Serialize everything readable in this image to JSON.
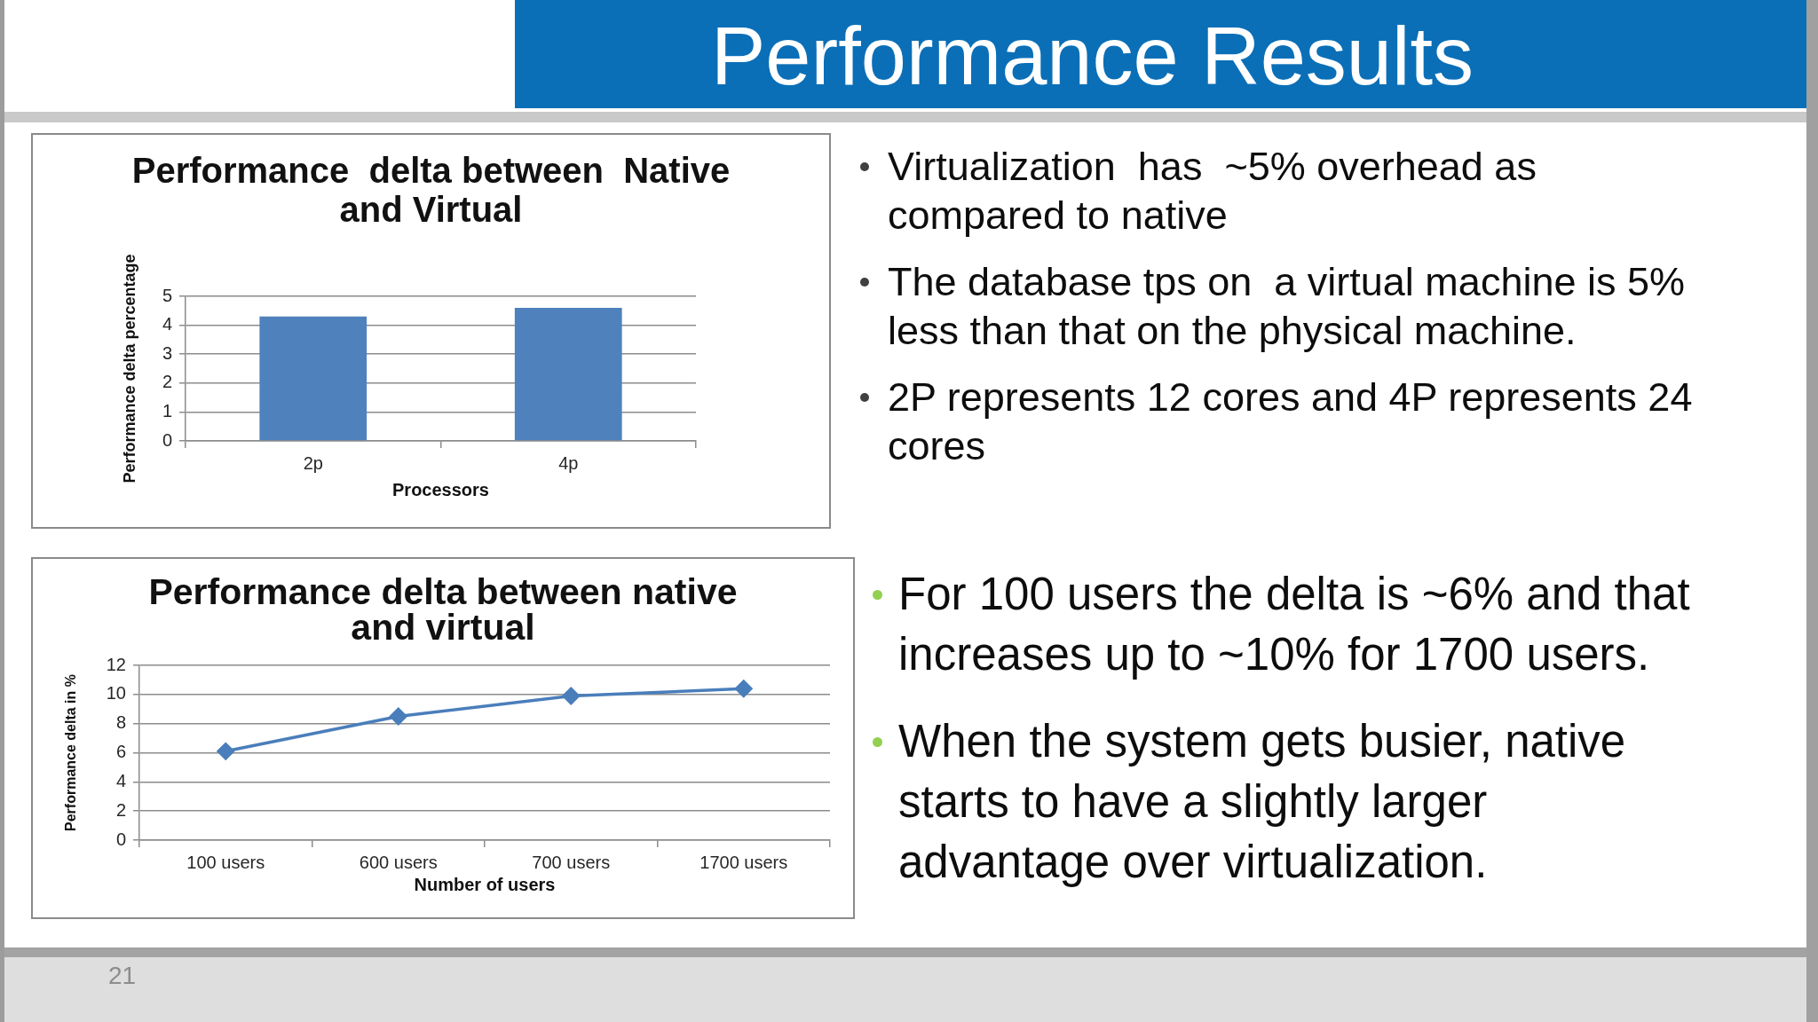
{
  "chart_data": [
    {
      "type": "other",
      "title": "Performance Results"
    },
    {
      "type": "bar",
      "title": "Performance  delta between  Native and Virtual",
      "xlabel": "Processors",
      "ylabel": "Performance delta percentage",
      "categories": [
        "2p",
        "4p"
      ],
      "values": [
        4.3,
        4.6
      ],
      "color": "#4f81bd",
      "ylim": [
        0,
        5
      ],
      "yticks": [
        0,
        1,
        2,
        3,
        4,
        5
      ],
      "grid": "y"
    },
    {
      "type": "other",
      "annotations": [
        "Virtualization  has  ~5% overhead as compared to native",
        "The database tps on  a virtual machine is 5% less than that on the physical machine.",
        "2P represents 12 cores and 4P represents 24 cores"
      ]
    },
    {
      "type": "line",
      "title": "Performance delta between native and virtual",
      "xlabel": "Number of users",
      "ylabel": "Performance delta in %",
      "categories": [
        "100 users",
        "600 users",
        "700 users",
        "1700 users"
      ],
      "values": [
        6.1,
        8.5,
        9.9,
        10.4
      ],
      "color": "#4a7ebb",
      "marker": "diamond",
      "ylim": [
        0,
        12
      ],
      "yticks": [
        0,
        2,
        4,
        6,
        8,
        10,
        12
      ],
      "grid": "y"
    },
    {
      "type": "other",
      "annotations": [
        "For 100 users the delta is ~6% and that increases up to ~10% for 1700 users.",
        "When the system gets busier, native starts to have a slightly larger advantage over virtualization."
      ]
    },
    {
      "type": "other",
      "annotations": [
        "21"
      ]
    }
  ]
}
